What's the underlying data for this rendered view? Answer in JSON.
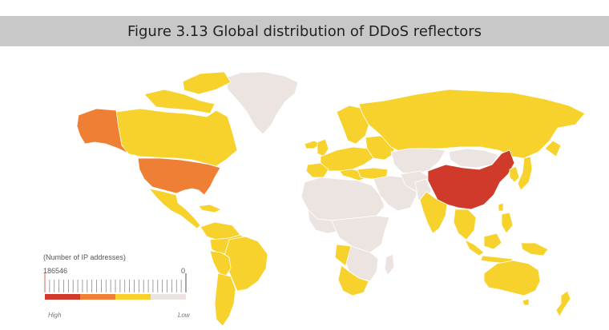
{
  "figure": {
    "title": "Figure 3.13 Global distribution of DDoS reflectors"
  },
  "legend": {
    "caption": "(Number of IP addresses)",
    "max_value": "186546",
    "min_value": "0",
    "high_label": "High",
    "low_label": "Low",
    "bins": [
      "#d03a2b",
      "#ee7f34",
      "#f8d22c",
      "#ece4e0"
    ]
  },
  "map_data": {
    "type": "choropleth",
    "scale_colors": {
      "highest": "#d03a2b",
      "high": "#ee7f34",
      "medium": "#f8d22c",
      "low": "#ece4e0"
    },
    "regions": [
      {
        "region": "China",
        "level": "highest"
      },
      {
        "region": "United States",
        "level": "high"
      },
      {
        "region": "Alaska",
        "level": "high"
      },
      {
        "region": "Canada",
        "level": "medium"
      },
      {
        "region": "Mexico",
        "level": "medium"
      },
      {
        "region": "Brazil",
        "level": "medium"
      },
      {
        "region": "Argentina",
        "level": "medium"
      },
      {
        "region": "Colombia",
        "level": "medium"
      },
      {
        "region": "Russia",
        "level": "medium"
      },
      {
        "region": "Western Europe",
        "level": "medium"
      },
      {
        "region": "Turkey",
        "level": "medium"
      },
      {
        "region": "India",
        "level": "medium"
      },
      {
        "region": "Japan",
        "level": "medium"
      },
      {
        "region": "Korea",
        "level": "medium"
      },
      {
        "region": "Southeast Asia",
        "level": "medium"
      },
      {
        "region": "Australia",
        "level": "medium"
      },
      {
        "region": "New Zealand",
        "level": "medium"
      },
      {
        "region": "South Africa",
        "level": "medium"
      },
      {
        "region": "Angola",
        "level": "medium"
      },
      {
        "region": "Greenland",
        "level": "low"
      },
      {
        "region": "Africa (most)",
        "level": "low"
      },
      {
        "region": "Middle East",
        "level": "low"
      },
      {
        "region": "Central Asia",
        "level": "low"
      },
      {
        "region": "Mongolia",
        "level": "low"
      }
    ]
  }
}
